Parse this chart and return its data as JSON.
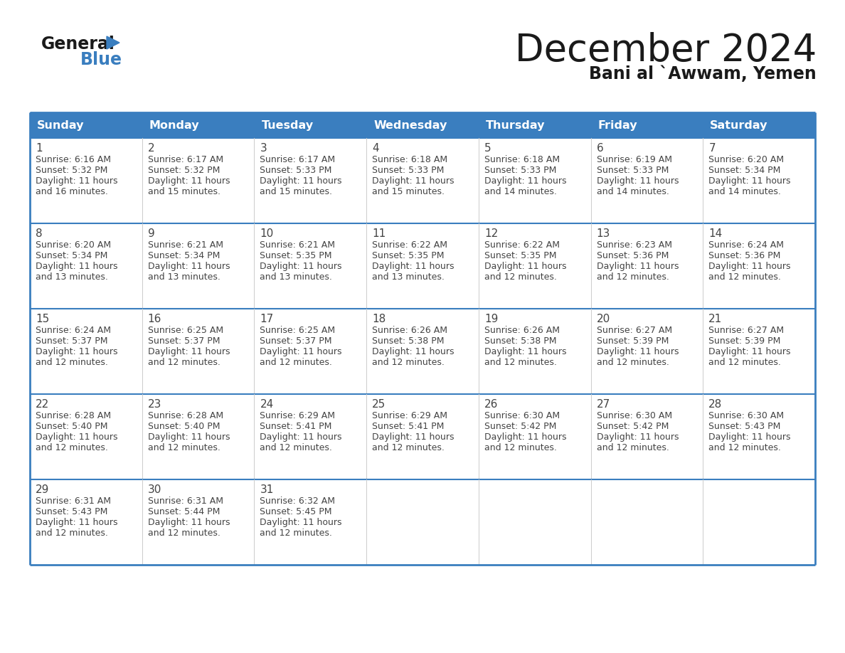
{
  "title": "December 2024",
  "subtitle": "Bani al `Awwam, Yemen",
  "header_color": "#3a7ebf",
  "header_text_color": "#ffffff",
  "cell_bg_color": "#ffffff",
  "alt_cell_bg_color": "#f0f0f0",
  "border_color": "#3a7ebf",
  "row_border_color": "#3a7ebf",
  "text_color": "#444444",
  "days_of_week": [
    "Sunday",
    "Monday",
    "Tuesday",
    "Wednesday",
    "Thursday",
    "Friday",
    "Saturday"
  ],
  "calendar_data": [
    [
      {
        "day": "1",
        "sunrise": "6:16 AM",
        "sunset": "5:32 PM",
        "daylight_h": "11 hours",
        "daylight_m": "and 16 minutes."
      },
      {
        "day": "2",
        "sunrise": "6:17 AM",
        "sunset": "5:32 PM",
        "daylight_h": "11 hours",
        "daylight_m": "and 15 minutes."
      },
      {
        "day": "3",
        "sunrise": "6:17 AM",
        "sunset": "5:33 PM",
        "daylight_h": "11 hours",
        "daylight_m": "and 15 minutes."
      },
      {
        "day": "4",
        "sunrise": "6:18 AM",
        "sunset": "5:33 PM",
        "daylight_h": "11 hours",
        "daylight_m": "and 15 minutes."
      },
      {
        "day": "5",
        "sunrise": "6:18 AM",
        "sunset": "5:33 PM",
        "daylight_h": "11 hours",
        "daylight_m": "and 14 minutes."
      },
      {
        "day": "6",
        "sunrise": "6:19 AM",
        "sunset": "5:33 PM",
        "daylight_h": "11 hours",
        "daylight_m": "and 14 minutes."
      },
      {
        "day": "7",
        "sunrise": "6:20 AM",
        "sunset": "5:34 PM",
        "daylight_h": "11 hours",
        "daylight_m": "and 14 minutes."
      }
    ],
    [
      {
        "day": "8",
        "sunrise": "6:20 AM",
        "sunset": "5:34 PM",
        "daylight_h": "11 hours",
        "daylight_m": "and 13 minutes."
      },
      {
        "day": "9",
        "sunrise": "6:21 AM",
        "sunset": "5:34 PM",
        "daylight_h": "11 hours",
        "daylight_m": "and 13 minutes."
      },
      {
        "day": "10",
        "sunrise": "6:21 AM",
        "sunset": "5:35 PM",
        "daylight_h": "11 hours",
        "daylight_m": "and 13 minutes."
      },
      {
        "day": "11",
        "sunrise": "6:22 AM",
        "sunset": "5:35 PM",
        "daylight_h": "11 hours",
        "daylight_m": "and 13 minutes."
      },
      {
        "day": "12",
        "sunrise": "6:22 AM",
        "sunset": "5:35 PM",
        "daylight_h": "11 hours",
        "daylight_m": "and 12 minutes."
      },
      {
        "day": "13",
        "sunrise": "6:23 AM",
        "sunset": "5:36 PM",
        "daylight_h": "11 hours",
        "daylight_m": "and 12 minutes."
      },
      {
        "day": "14",
        "sunrise": "6:24 AM",
        "sunset": "5:36 PM",
        "daylight_h": "11 hours",
        "daylight_m": "and 12 minutes."
      }
    ],
    [
      {
        "day": "15",
        "sunrise": "6:24 AM",
        "sunset": "5:37 PM",
        "daylight_h": "11 hours",
        "daylight_m": "and 12 minutes."
      },
      {
        "day": "16",
        "sunrise": "6:25 AM",
        "sunset": "5:37 PM",
        "daylight_h": "11 hours",
        "daylight_m": "and 12 minutes."
      },
      {
        "day": "17",
        "sunrise": "6:25 AM",
        "sunset": "5:37 PM",
        "daylight_h": "11 hours",
        "daylight_m": "and 12 minutes."
      },
      {
        "day": "18",
        "sunrise": "6:26 AM",
        "sunset": "5:38 PM",
        "daylight_h": "11 hours",
        "daylight_m": "and 12 minutes."
      },
      {
        "day": "19",
        "sunrise": "6:26 AM",
        "sunset": "5:38 PM",
        "daylight_h": "11 hours",
        "daylight_m": "and 12 minutes."
      },
      {
        "day": "20",
        "sunrise": "6:27 AM",
        "sunset": "5:39 PM",
        "daylight_h": "11 hours",
        "daylight_m": "and 12 minutes."
      },
      {
        "day": "21",
        "sunrise": "6:27 AM",
        "sunset": "5:39 PM",
        "daylight_h": "11 hours",
        "daylight_m": "and 12 minutes."
      }
    ],
    [
      {
        "day": "22",
        "sunrise": "6:28 AM",
        "sunset": "5:40 PM",
        "daylight_h": "11 hours",
        "daylight_m": "and 12 minutes."
      },
      {
        "day": "23",
        "sunrise": "6:28 AM",
        "sunset": "5:40 PM",
        "daylight_h": "11 hours",
        "daylight_m": "and 12 minutes."
      },
      {
        "day": "24",
        "sunrise": "6:29 AM",
        "sunset": "5:41 PM",
        "daylight_h": "11 hours",
        "daylight_m": "and 12 minutes."
      },
      {
        "day": "25",
        "sunrise": "6:29 AM",
        "sunset": "5:41 PM",
        "daylight_h": "11 hours",
        "daylight_m": "and 12 minutes."
      },
      {
        "day": "26",
        "sunrise": "6:30 AM",
        "sunset": "5:42 PM",
        "daylight_h": "11 hours",
        "daylight_m": "and 12 minutes."
      },
      {
        "day": "27",
        "sunrise": "6:30 AM",
        "sunset": "5:42 PM",
        "daylight_h": "11 hours",
        "daylight_m": "and 12 minutes."
      },
      {
        "day": "28",
        "sunrise": "6:30 AM",
        "sunset": "5:43 PM",
        "daylight_h": "11 hours",
        "daylight_m": "and 12 minutes."
      }
    ],
    [
      {
        "day": "29",
        "sunrise": "6:31 AM",
        "sunset": "5:43 PM",
        "daylight_h": "11 hours",
        "daylight_m": "and 12 minutes."
      },
      {
        "day": "30",
        "sunrise": "6:31 AM",
        "sunset": "5:44 PM",
        "daylight_h": "11 hours",
        "daylight_m": "and 12 minutes."
      },
      {
        "day": "31",
        "sunrise": "6:32 AM",
        "sunset": "5:45 PM",
        "daylight_h": "11 hours",
        "daylight_m": "and 12 minutes."
      },
      null,
      null,
      null,
      null
    ]
  ]
}
